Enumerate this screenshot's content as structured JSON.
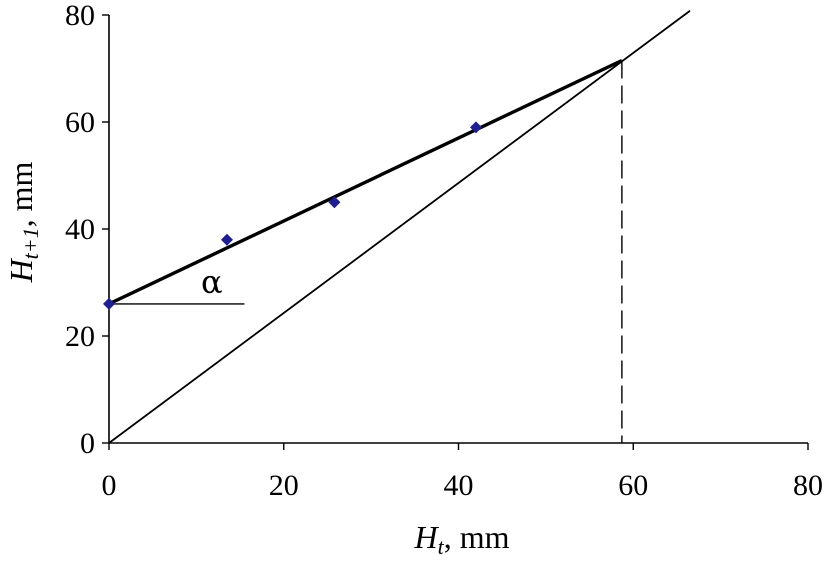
{
  "chart_data": {
    "type": "scatter",
    "title": "",
    "xlabel": {
      "var": "H",
      "sub": "t",
      "unit": ", mm"
    },
    "ylabel": {
      "var": "H",
      "sub": "t+1",
      "unit": ", mm"
    },
    "xlim": [
      0,
      80
    ],
    "ylim": [
      0,
      80
    ],
    "xticks": [
      0,
      20,
      40,
      60,
      80
    ],
    "yticks": [
      0,
      20,
      40,
      60,
      80
    ],
    "xtick_labels": [
      "0",
      "20",
      "40",
      "60",
      "80"
    ],
    "ytick_labels": [
      "0",
      "20",
      "40",
      "60",
      "80"
    ],
    "grid": false,
    "series": [
      {
        "kind": "points",
        "marker": "diamond",
        "color": "#1f1f8f",
        "x": [
          0,
          13.5,
          25.8,
          42
        ],
        "y": [
          26,
          38,
          45,
          59
        ]
      },
      {
        "kind": "fit-line",
        "color": "#000000",
        "x": [
          0,
          58.7
        ],
        "y": [
          26,
          71.5
        ]
      },
      {
        "kind": "identity-line",
        "color": "#000000",
        "x": [
          0,
          66.5
        ],
        "y": [
          0,
          80.8
        ]
      },
      {
        "kind": "dashed-drop-line",
        "color": "#000000",
        "x": [
          58.7,
          58.7
        ],
        "y": [
          71.5,
          0
        ]
      }
    ],
    "annotations": [
      {
        "text": "α",
        "kind": "angle-marker",
        "x": [
          0,
          15.5
        ],
        "y": [
          26,
          26
        ]
      }
    ]
  }
}
